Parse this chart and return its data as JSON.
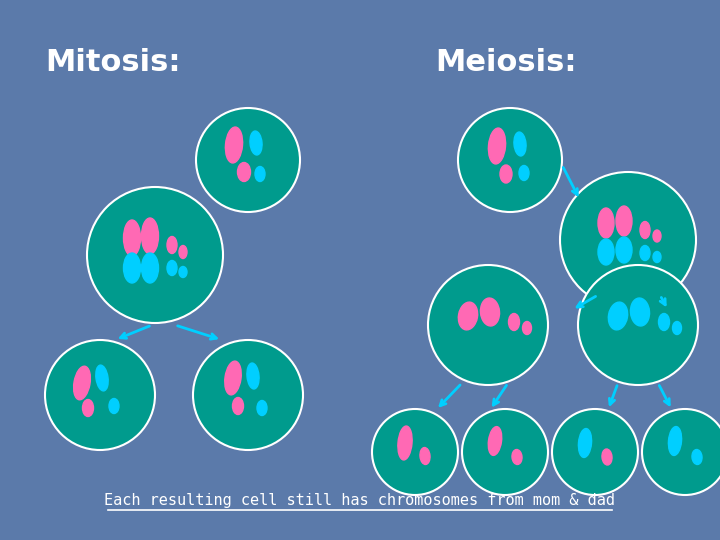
{
  "bg_color": "#5b7aaa",
  "cell_color": "#009B8D",
  "cell_edge_color": "#ffffff",
  "pink": "#FF69B4",
  "cyan": "#00CFFF",
  "title_color": "#ffffff",
  "arrow_color": "#00CFFF",
  "text_bottom": "Each resulting cell still has chromosomes from mom & dad",
  "title_mitosis": "Mitosis:",
  "title_meiosis": "Meiosis:"
}
